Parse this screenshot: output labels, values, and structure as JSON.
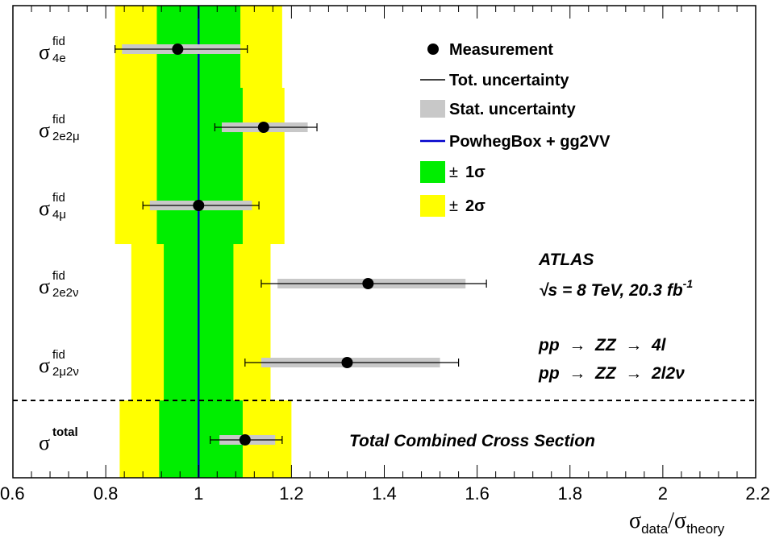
{
  "chart_data": {
    "type": "scatter",
    "x_axis": {
      "label_main": "σ",
      "label_num_sub": "data",
      "label_slash": "/",
      "label_den_main": "σ",
      "label_den_sub": "theory",
      "xlim": [
        0.6,
        2.2
      ],
      "ticks": [
        "0.6",
        "0.8",
        "1",
        "1.2",
        "1.4",
        "1.6",
        "1.8",
        "2",
        "2.2"
      ]
    },
    "theory_value": 1.0,
    "rows": [
      {
        "symbol": "σ",
        "sup": "fid",
        "sub": "4e",
        "central": 0.955,
        "stat_lo": 0.835,
        "stat_hi": 1.09,
        "tot_lo": 0.82,
        "tot_hi": 1.105,
        "band1_lo": 0.91,
        "band1_hi": 1.09,
        "band2_lo": 0.82,
        "band2_hi": 1.18
      },
      {
        "symbol": "σ",
        "sup": "fid",
        "sub": "2e2μ",
        "central": 1.14,
        "stat_lo": 1.05,
        "stat_hi": 1.235,
        "tot_lo": 1.035,
        "tot_hi": 1.255,
        "band1_lo": 0.91,
        "band1_hi": 1.095,
        "band2_lo": 0.82,
        "band2_hi": 1.185
      },
      {
        "symbol": "σ",
        "sup": "fid",
        "sub": "4μ",
        "central": 1.0,
        "stat_lo": 0.895,
        "stat_hi": 1.115,
        "tot_lo": 0.88,
        "tot_hi": 1.13,
        "band1_lo": 0.91,
        "band1_hi": 1.095,
        "band2_lo": 0.82,
        "band2_hi": 1.185
      },
      {
        "symbol": "σ",
        "sup": "fid",
        "sub": "2e2ν",
        "central": 1.365,
        "stat_lo": 1.17,
        "stat_hi": 1.575,
        "tot_lo": 1.135,
        "tot_hi": 1.62,
        "band1_lo": 0.925,
        "band1_hi": 1.075,
        "band2_lo": 0.855,
        "band2_hi": 1.155
      },
      {
        "symbol": "σ",
        "sup": "fid",
        "sub": "2μ2ν",
        "central": 1.32,
        "stat_lo": 1.135,
        "stat_hi": 1.52,
        "tot_lo": 1.1,
        "tot_hi": 1.56,
        "band1_lo": 0.925,
        "band1_hi": 1.075,
        "band2_lo": 0.855,
        "band2_hi": 1.155
      },
      {
        "symbol": "σ",
        "sup": "total",
        "sub": "",
        "central": 1.1,
        "stat_lo": 1.045,
        "stat_hi": 1.165,
        "tot_lo": 1.025,
        "tot_hi": 1.18,
        "band1_lo": 0.915,
        "band1_hi": 1.095,
        "band2_lo": 0.83,
        "band2_hi": 1.2
      }
    ],
    "legend": [
      {
        "key": "measurement",
        "label": "Measurement"
      },
      {
        "key": "tot",
        "label": "Tot. uncertainty"
      },
      {
        "key": "stat",
        "label": "Stat. uncertainty"
      },
      {
        "key": "theory",
        "label": "PowhegBox + gg2VV"
      },
      {
        "key": "band1",
        "label_pm": "±",
        "label": "1σ"
      },
      {
        "key": "band2",
        "label_pm": "±",
        "label": "2σ"
      }
    ],
    "annotations": {
      "experiment": "ATLAS",
      "energy": "√s = 8 TeV, 20.3 fb",
      "energy_sup": "-1",
      "process1": "pp  →  ZZ  →  4l",
      "process2": "pp  →  ZZ  →  2l2ν",
      "combined": "Total Combined Cross Section"
    },
    "colors": {
      "band1": "#00ee00",
      "band2": "#ffff00",
      "stat": "#c8c8c8",
      "theory": "#0000cc",
      "marker": "#000000"
    },
    "separator": "dashed"
  }
}
